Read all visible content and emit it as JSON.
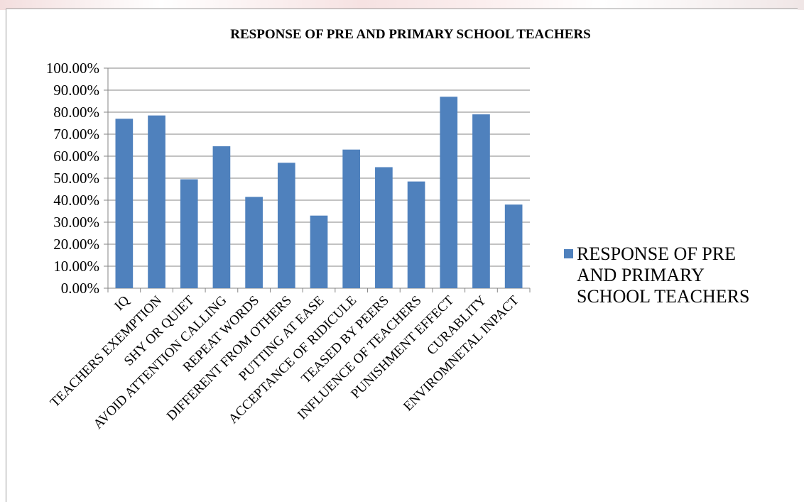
{
  "chart_data": {
    "type": "bar",
    "title": "RESPONSE OF PRE AND PRIMARY SCHOOL TEACHERS",
    "xlabel": "",
    "ylabel": "",
    "ylim": [
      0,
      1
    ],
    "y_ticks": [
      "0.00%",
      "10.00%",
      "20.00%",
      "30.00%",
      "40.00%",
      "50.00%",
      "60.00%",
      "70.00%",
      "80.00%",
      "90.00%",
      "100.00%"
    ],
    "grid": true,
    "legend_position": "right",
    "categories": [
      "IQ",
      "TEACHERS EXEMPTION",
      "SHY OR QUIET",
      "AVOID ATTENTION CALLING",
      "REPEAT WORDS",
      "DIFFERENT FROM OTHERS",
      "PUTTING AT EASE",
      "ACCEPTANCE OF RIDICULE",
      "TEASED BY PEERS",
      "INFLUENCE OF TEACHERS",
      "PUNISHMENT EFFECT",
      "CURABLITY",
      "ENVIROMNETAL INPACT"
    ],
    "series": [
      {
        "name": "RESPONSE OF PRE AND PRIMARY SCHOOL TEACHERS",
        "legend_lines": [
          "RESPONSE OF PRE",
          "AND PRIMARY",
          "SCHOOL TEACHERS"
        ],
        "color": "#4f81bd",
        "values": [
          0.77,
          0.785,
          0.495,
          0.645,
          0.415,
          0.57,
          0.33,
          0.63,
          0.55,
          0.485,
          0.87,
          0.79,
          0.38
        ]
      }
    ]
  }
}
